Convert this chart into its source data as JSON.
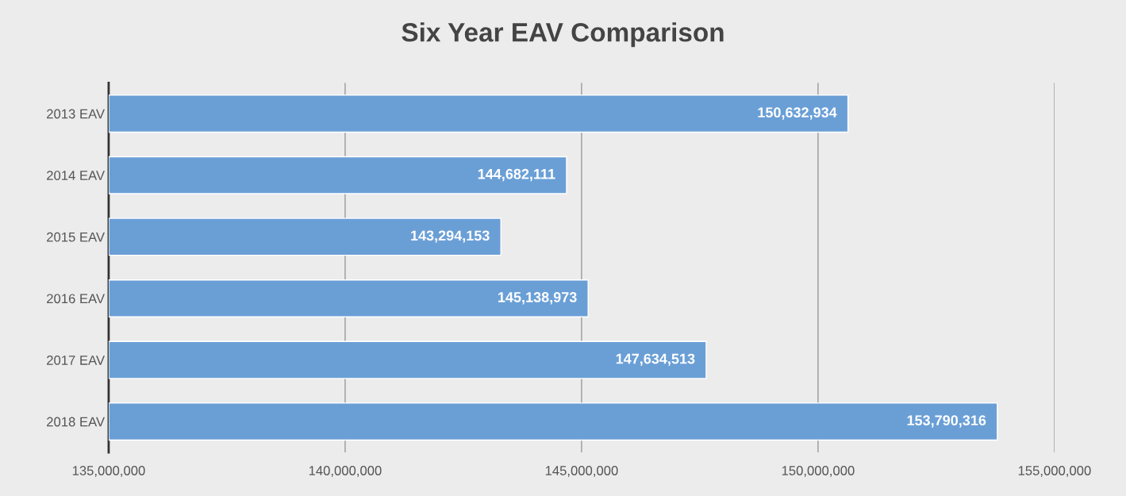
{
  "chart_data": {
    "type": "bar",
    "orientation": "horizontal",
    "title": "Six Year EAV Comparison",
    "categories": [
      "2013 EAV",
      "2014 EAV",
      "2015 EAV",
      "2016 EAV",
      "2017 EAV",
      "2018 EAV"
    ],
    "values": [
      150632934,
      144682111,
      143294153,
      145138973,
      147634513,
      153790316
    ],
    "value_labels": [
      "150,632,934",
      "144,682,111",
      "143,294,153",
      "145,138,973",
      "147,634,513",
      "153,790,316"
    ],
    "color": "#6a9fd6",
    "xlim": [
      135000000,
      155000000
    ],
    "xticks": [
      {
        "value": 135000000,
        "label": "135,000,000"
      },
      {
        "value": 140000000,
        "label": "140,000,000"
      },
      {
        "value": 145000000,
        "label": "145,000,000"
      },
      {
        "value": 150000000,
        "label": "150,000,000"
      },
      {
        "value": 155000000,
        "label": "155,000,000"
      }
    ],
    "grid": "x",
    "legend": false
  }
}
